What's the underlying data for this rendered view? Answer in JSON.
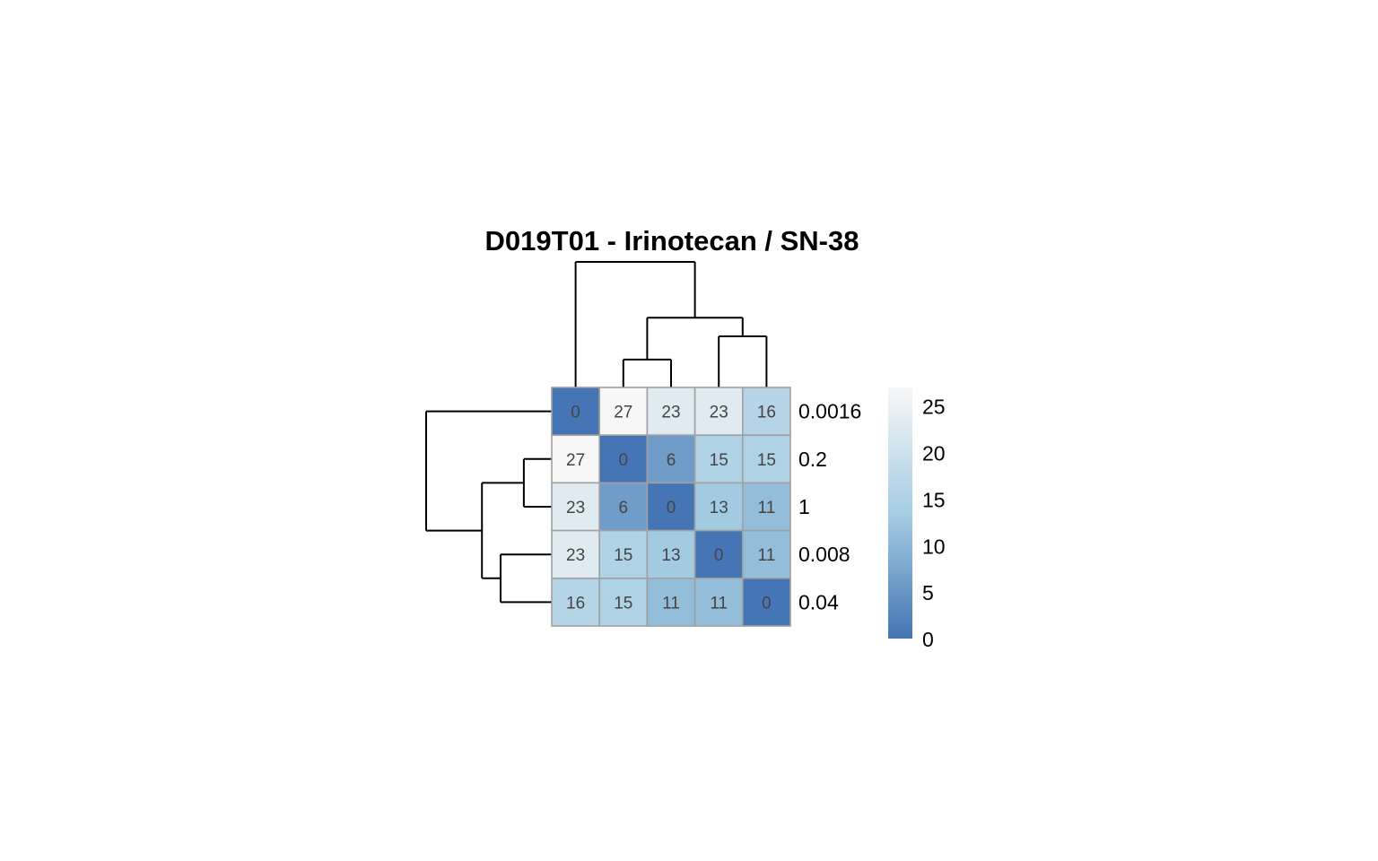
{
  "chart_data": {
    "type": "heatmap",
    "title": "D019T01 - Irinotecan / SN-38",
    "row_labels": [
      "0.0016",
      "0.2",
      "1",
      "0.008",
      "0.04"
    ],
    "matrix": [
      [
        0,
        27,
        23,
        23,
        16
      ],
      [
        27,
        0,
        6,
        15,
        15
      ],
      [
        23,
        6,
        0,
        13,
        11
      ],
      [
        23,
        15,
        13,
        0,
        11
      ],
      [
        16,
        15,
        11,
        11,
        0
      ]
    ],
    "color_scale": {
      "min": 0,
      "max": 27,
      "low_color": "#4575b4",
      "mid_color": "#a6cde3",
      "high_color": "#f7f7f7"
    },
    "legend": {
      "ticks": [
        0,
        5,
        10,
        15,
        20,
        25
      ],
      "range": [
        0,
        27
      ],
      "placement": "right"
    },
    "row_dendrogram": {
      "merges": [
        {
          "members": [
            1,
            2
          ],
          "height": 6
        },
        {
          "members": [
            3,
            4
          ],
          "height": 11
        },
        {
          "members": [
            1,
            2,
            3,
            4
          ],
          "height": 15
        },
        {
          "members": [
            0,
            1,
            2,
            3,
            4
          ],
          "height": 27
        }
      ]
    },
    "column_dendrogram": {
      "merges": [
        {
          "members": [
            1,
            2
          ],
          "height": 6
        },
        {
          "members": [
            3,
            4
          ],
          "height": 11
        },
        {
          "members": [
            1,
            2,
            3,
            4
          ],
          "height": 15
        },
        {
          "members": [
            0,
            1,
            2,
            3,
            4
          ],
          "height": 27
        }
      ]
    }
  }
}
